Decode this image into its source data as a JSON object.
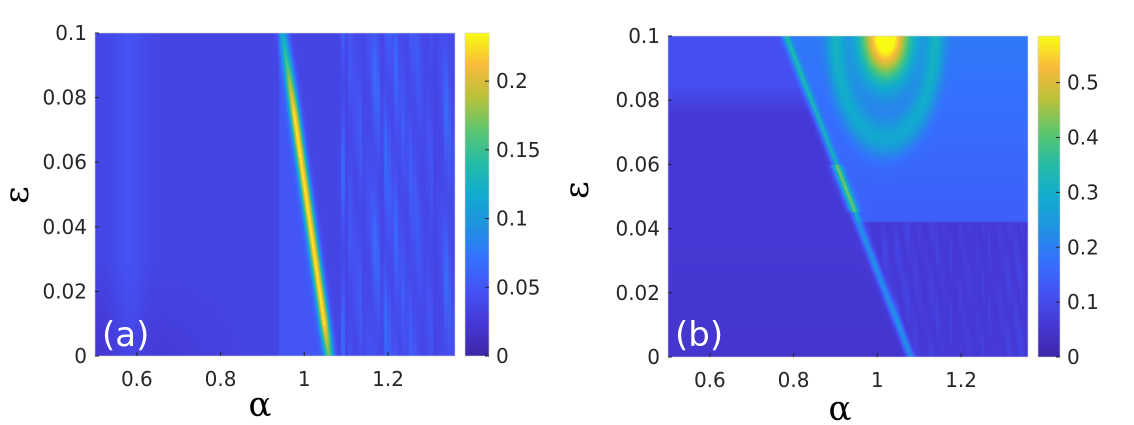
{
  "chart_data": [
    {
      "type": "heatmap",
      "panel_label": "(a)",
      "xlabel": "α",
      "ylabel": "ε",
      "xlim": [
        0.5,
        1.36
      ],
      "ylim": [
        0,
        0.1
      ],
      "xticks": [
        0.6,
        0.8,
        1,
        1.2
      ],
      "xtick_labels": [
        "0.6",
        "0.8",
        "1",
        "1.2"
      ],
      "yticks": [
        0,
        0.02,
        0.04,
        0.06,
        0.08,
        0.1
      ],
      "ytick_labels": [
        "0",
        "0.02",
        "0.04",
        "0.06",
        "0.08",
        "0.1"
      ],
      "colorbar": {
        "range": [
          0,
          0.235
        ],
        "ticks": [
          0,
          0.05,
          0.1,
          0.15,
          0.2
        ],
        "tick_labels": [
          "0",
          "0.05",
          "0.1",
          "0.15",
          "0.2"
        ],
        "colormap": "parula"
      },
      "features": {
        "background_value": 0.035,
        "ridge": {
          "alpha_at_eps0": 1.06,
          "alpha_at_eps_max": 0.95,
          "peak_value": 0.22,
          "peak_eps_range": [
            0.01,
            0.075
          ]
        },
        "striped_region_alpha_min": 1.08
      }
    },
    {
      "type": "heatmap",
      "panel_label": "(b)",
      "xlabel": "α",
      "ylabel": "ε",
      "xlim": [
        0.5,
        1.36
      ],
      "ylim": [
        0,
        0.1
      ],
      "xticks": [
        0.6,
        0.8,
        1,
        1.2
      ],
      "xtick_labels": [
        "0.6",
        "0.8",
        "1",
        "1.2"
      ],
      "yticks": [
        0,
        0.02,
        0.04,
        0.06,
        0.08,
        0.1
      ],
      "ytick_labels": [
        "0",
        "0.02",
        "0.04",
        "0.06",
        "0.08",
        "0.1"
      ],
      "colorbar": {
        "range": [
          0,
          0.585
        ],
        "ticks": [
          0,
          0.1,
          0.2,
          0.3,
          0.4,
          0.5
        ],
        "tick_labels": [
          "0",
          "0.1",
          "0.2",
          "0.3",
          "0.4",
          "0.5"
        ],
        "colormap": "parula"
      },
      "features": {
        "background_value": 0.06,
        "diagonal_line": {
          "alpha_at_eps0": 1.08,
          "alpha_at_eps_max": 0.78
        },
        "horizontal_boundary_eps": 0.042,
        "peak": {
          "alpha": 1.02,
          "eps": 0.1,
          "value": 0.57
        }
      }
    }
  ]
}
